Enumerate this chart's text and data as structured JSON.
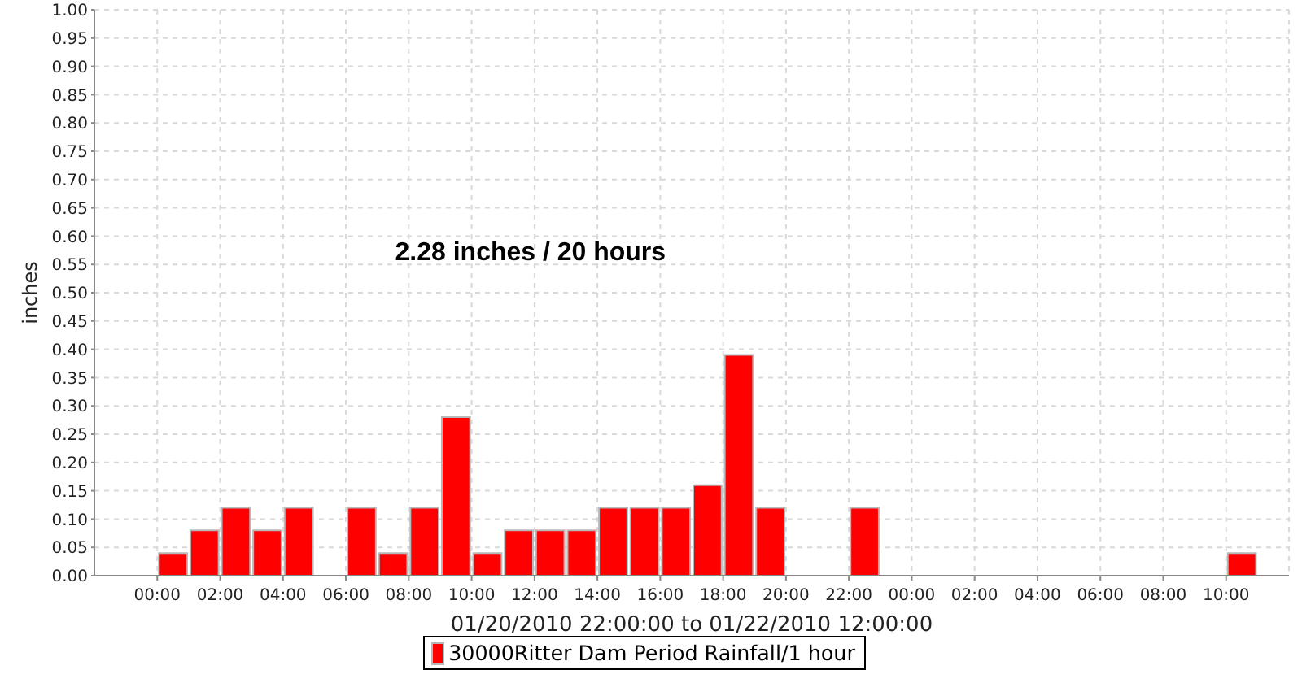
{
  "chart_data": {
    "type": "bar",
    "xlabel": "01/20/2010 22:00:00 to 01/22/2010 12:00:00",
    "ylabel": "inches",
    "annotations": [
      "2.28 inches / 20 hours"
    ],
    "x": [
      "2010-01-21T00:30",
      "2010-01-21T01:30",
      "2010-01-21T02:30",
      "2010-01-21T03:30",
      "2010-01-21T04:30",
      "2010-01-21T06:30",
      "2010-01-21T07:30",
      "2010-01-21T08:30",
      "2010-01-21T09:30",
      "2010-01-21T10:30",
      "2010-01-21T11:30",
      "2010-01-21T12:30",
      "2010-01-21T13:30",
      "2010-01-21T14:30",
      "2010-01-21T15:30",
      "2010-01-21T16:30",
      "2010-01-21T17:30",
      "2010-01-21T18:30",
      "2010-01-21T19:30",
      "2010-01-21T22:30",
      "2010-01-22T10:30"
    ],
    "series": [
      {
        "name": "30000Ritter Dam Period Rainfall/1 hour",
        "color": "#ff0000",
        "values": [
          0.04,
          0.08,
          0.12,
          0.08,
          0.12,
          0.12,
          0.04,
          0.12,
          0.28,
          0.04,
          0.08,
          0.08,
          0.08,
          0.12,
          0.12,
          0.12,
          0.16,
          0.39,
          0.12,
          0.12,
          0.04
        ]
      }
    ],
    "xlim": [
      "2010-01-20T22:00",
      "2010-01-22T12:00"
    ],
    "xticks": [
      {
        "value": "2010-01-21T00:00",
        "label": "00:00"
      },
      {
        "value": "2010-01-21T02:00",
        "label": "02:00"
      },
      {
        "value": "2010-01-21T04:00",
        "label": "04:00"
      },
      {
        "value": "2010-01-21T06:00",
        "label": "06:00"
      },
      {
        "value": "2010-01-21T08:00",
        "label": "08:00"
      },
      {
        "value": "2010-01-21T10:00",
        "label": "10:00"
      },
      {
        "value": "2010-01-21T12:00",
        "label": "12:00"
      },
      {
        "value": "2010-01-21T14:00",
        "label": "14:00"
      },
      {
        "value": "2010-01-21T16:00",
        "label": "16:00"
      },
      {
        "value": "2010-01-21T18:00",
        "label": "18:00"
      },
      {
        "value": "2010-01-21T20:00",
        "label": "20:00"
      },
      {
        "value": "2010-01-21T22:00",
        "label": "22:00"
      },
      {
        "value": "2010-01-22T00:00",
        "label": "00:00"
      },
      {
        "value": "2010-01-22T02:00",
        "label": "02:00"
      },
      {
        "value": "2010-01-22T04:00",
        "label": "04:00"
      },
      {
        "value": "2010-01-22T06:00",
        "label": "06:00"
      },
      {
        "value": "2010-01-22T08:00",
        "label": "08:00"
      },
      {
        "value": "2010-01-22T10:00",
        "label": "10:00"
      }
    ],
    "ylim": [
      0,
      1
    ],
    "yticks": [
      {
        "value": 0,
        "label": "0.00"
      },
      0.05,
      {
        "value": 0.1,
        "label": "0.10"
      },
      0.15,
      {
        "value": 0.2,
        "label": "0.20"
      },
      0.25,
      {
        "value": 0.3,
        "label": "0.30"
      },
      0.35,
      {
        "value": 0.4,
        "label": "0.40"
      },
      0.45,
      {
        "value": 0.5,
        "label": "0.50"
      },
      0.55,
      {
        "value": 0.6,
        "label": "0.60"
      },
      0.65,
      {
        "value": 0.7,
        "label": "0.70"
      },
      0.75,
      {
        "value": 0.8,
        "label": "0.80"
      },
      0.85,
      {
        "value": 0.9,
        "label": "0.90"
      },
      0.95,
      {
        "value": 1,
        "label": "1.00"
      }
    ],
    "grid": true,
    "legend": "bottom"
  }
}
